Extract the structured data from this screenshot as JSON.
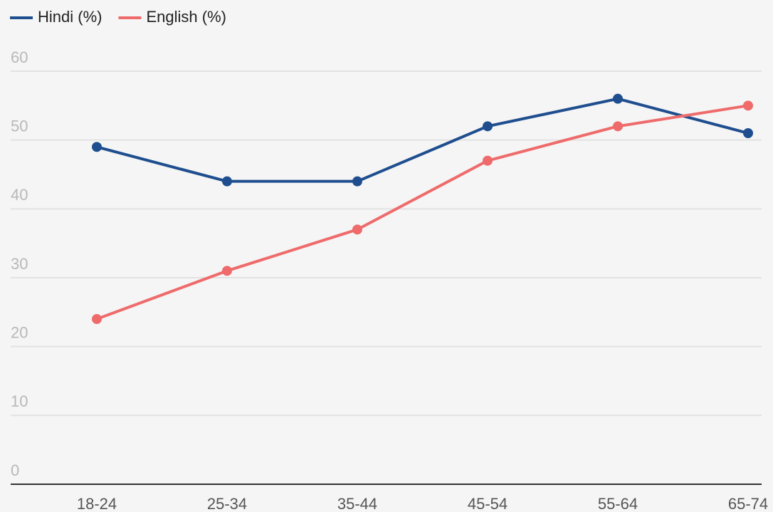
{
  "chart_data": {
    "type": "line",
    "categories": [
      "18-24",
      "25-34",
      "35-44",
      "45-54",
      "55-64",
      "65-74"
    ],
    "series": [
      {
        "name": "Hindi (%)",
        "color": "#1f4e8f",
        "values": [
          49,
          44,
          44,
          52,
          56,
          51
        ]
      },
      {
        "name": "English (%)",
        "color": "#ef6b6b",
        "values": [
          24,
          31,
          37,
          47,
          52,
          55
        ]
      }
    ],
    "ylim": [
      0,
      60
    ],
    "yticks": [
      0,
      10,
      20,
      30,
      40,
      50,
      60
    ],
    "grid": true,
    "legend": "top-left"
  }
}
